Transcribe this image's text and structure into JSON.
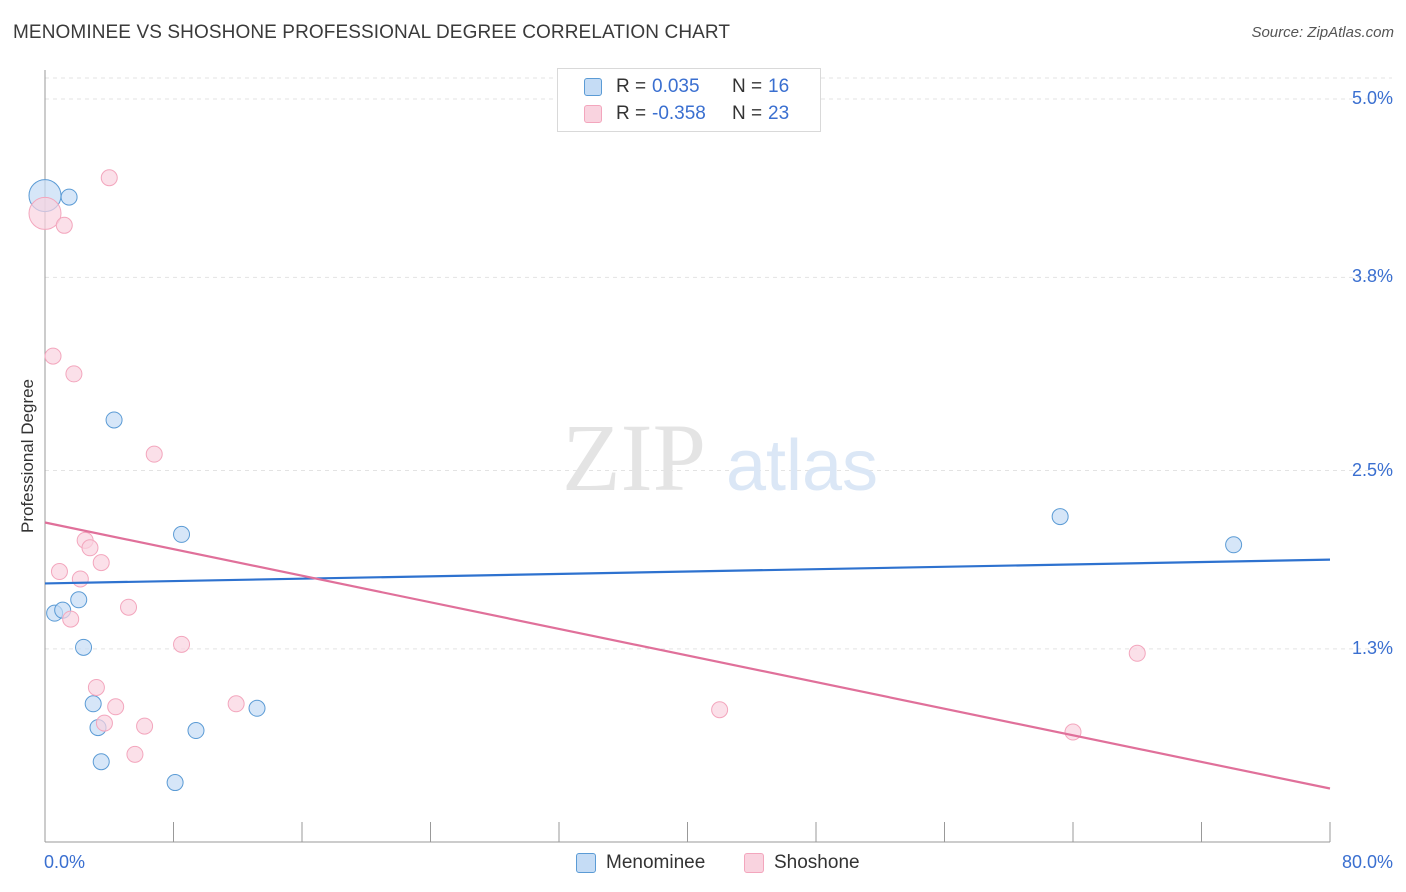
{
  "chart_data": {
    "type": "scatter",
    "title": "MENOMINEE VS SHOSHONE PROFESSIONAL DEGREE CORRELATION CHART",
    "source": "Source: ZipAtlas.com",
    "ylabel": "Professional Degree",
    "xlabel": "",
    "xlim": [
      0,
      80
    ],
    "ylim": [
      0,
      5.2
    ],
    "x_tick_labels": [
      "0.0%",
      "80.0%"
    ],
    "y_ticks": [
      {
        "value": 5.0,
        "label": "5.0%"
      },
      {
        "value": 3.8,
        "label": "3.8%"
      },
      {
        "value": 2.5,
        "label": "2.5%"
      },
      {
        "value": 1.3,
        "label": "1.3%"
      }
    ],
    "watermark": {
      "zip": "ZIP",
      "atlas": "atlas"
    },
    "series": [
      {
        "name": "Menominee",
        "color": "#5b9bd5",
        "fill": "#c5dcf5",
        "line_color": "#2e72cf",
        "R": "0.035",
        "N": "16",
        "points": [
          [
            0.0,
            4.35
          ],
          [
            1.5,
            4.34
          ],
          [
            4.3,
            2.84
          ],
          [
            8.5,
            2.07
          ],
          [
            2.1,
            1.63
          ],
          [
            0.6,
            1.54
          ],
          [
            1.1,
            1.56
          ],
          [
            2.4,
            1.31
          ],
          [
            3.0,
            0.93
          ],
          [
            3.3,
            0.77
          ],
          [
            3.5,
            0.54
          ],
          [
            9.4,
            0.75
          ],
          [
            13.2,
            0.9
          ],
          [
            8.1,
            0.4
          ],
          [
            63.2,
            2.19
          ],
          [
            74.0,
            2.0
          ]
        ],
        "trend": [
          [
            0,
            1.74
          ],
          [
            80,
            1.9
          ]
        ]
      },
      {
        "name": "Shoshone",
        "color": "#f3a6bd",
        "fill": "#f9d3df",
        "line_color": "#e0709a",
        "R": "-0.358",
        "N": "23",
        "points": [
          [
            0.0,
            4.23
          ],
          [
            4.0,
            4.47
          ],
          [
            1.2,
            4.15
          ],
          [
            0.5,
            3.27
          ],
          [
            1.8,
            3.15
          ],
          [
            6.8,
            2.61
          ],
          [
            2.5,
            2.03
          ],
          [
            2.8,
            1.98
          ],
          [
            3.5,
            1.88
          ],
          [
            0.9,
            1.82
          ],
          [
            2.2,
            1.77
          ],
          [
            5.2,
            1.58
          ],
          [
            1.6,
            1.5
          ],
          [
            8.5,
            1.33
          ],
          [
            3.2,
            1.04
          ],
          [
            4.4,
            0.91
          ],
          [
            3.7,
            0.8
          ],
          [
            6.2,
            0.78
          ],
          [
            11.9,
            0.93
          ],
          [
            5.6,
            0.59
          ],
          [
            42.0,
            0.89
          ],
          [
            68.0,
            1.27
          ],
          [
            64.0,
            0.74
          ]
        ],
        "trend": [
          [
            0,
            2.15
          ],
          [
            80,
            0.36
          ]
        ]
      }
    ]
  }
}
